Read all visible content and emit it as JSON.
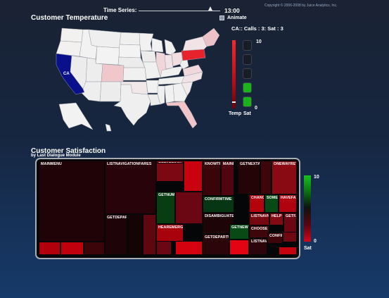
{
  "copyright": "Copyright © 2006-2008 by Juice Analytics, Inc.",
  "time_series": {
    "label": "Time Series:",
    "time": "13:00",
    "position": 0.88
  },
  "animate": {
    "label": "Animate",
    "checked": false
  },
  "temperature": {
    "title": "Customer Temperature",
    "readout": "CA:: Calls : 3: Sat : 3",
    "selected_state": "CA",
    "temp_label": "Temp",
    "sat_label": "Sat",
    "scale_max": "10",
    "scale_min": "0",
    "temp_level": 0.1,
    "sat_level": 3,
    "sat_slots": 5
  },
  "satisfaction": {
    "title": "Customer Satisfaction",
    "subtitle": "by Last Dialogue Module",
    "scale_max": "10",
    "scale_min": "0",
    "scale_label": "Sat"
  },
  "map_states": [
    {
      "name": "WA",
      "fill": "#f3f0f0"
    },
    {
      "name": "OR",
      "fill": "#f3f0f0"
    },
    {
      "name": "CA",
      "fill": "#0a0f8c"
    },
    {
      "name": "NV",
      "fill": "#ececec"
    },
    {
      "name": "ID",
      "fill": "#f2f2f2"
    },
    {
      "name": "MT",
      "fill": "#efefef"
    },
    {
      "name": "WY",
      "fill": "#f3f3f3"
    },
    {
      "name": "UT",
      "fill": "#ededed"
    },
    {
      "name": "AZ",
      "fill": "#eeeeee"
    },
    {
      "name": "CO",
      "fill": "#f0c8cc"
    },
    {
      "name": "NM",
      "fill": "#ececec"
    },
    {
      "name": "ND",
      "fill": "#efefef"
    },
    {
      "name": "SD",
      "fill": "#f3f3f3"
    },
    {
      "name": "NE",
      "fill": "#ececec"
    },
    {
      "name": "KS",
      "fill": "#f0f0f0"
    },
    {
      "name": "OK",
      "fill": "#f1e7e9"
    },
    {
      "name": "TX",
      "fill": "#efefef"
    },
    {
      "name": "MN",
      "fill": "#f1f1f1"
    },
    {
      "name": "IA",
      "fill": "#ececec"
    },
    {
      "name": "MO",
      "fill": "#f0f0f0"
    },
    {
      "name": "AR",
      "fill": "#f1f1f1"
    },
    {
      "name": "LA",
      "fill": "#ededed"
    },
    {
      "name": "WI",
      "fill": "#f2f2f2"
    },
    {
      "name": "IL",
      "fill": "#f0d6d9"
    },
    {
      "name": "MI",
      "fill": "#efefef"
    },
    {
      "name": "IN",
      "fill": "#f1e4e6"
    },
    {
      "name": "OH",
      "fill": "#f2dde0"
    },
    {
      "name": "KY",
      "fill": "#f0f0f0"
    },
    {
      "name": "TN",
      "fill": "#efefef"
    },
    {
      "name": "MS",
      "fill": "#f0f0f0"
    },
    {
      "name": "AL",
      "fill": "#f1f1f1"
    },
    {
      "name": "GA",
      "fill": "#f0f0f0"
    },
    {
      "name": "FL",
      "fill": "#f0c4c9"
    },
    {
      "name": "SC",
      "fill": "#f1e9ea"
    },
    {
      "name": "NC",
      "fill": "#f0e2e5"
    },
    {
      "name": "VA",
      "fill": "#f1d8dc"
    },
    {
      "name": "WV",
      "fill": "#efefef"
    },
    {
      "name": "PA",
      "fill": "#e8222d"
    },
    {
      "name": "NY",
      "fill": "#f2e4e6"
    },
    {
      "name": "NE-states",
      "fill": "#ecc2c8"
    },
    {
      "name": "AK",
      "fill": "#f2f2f2"
    },
    {
      "name": "HI",
      "fill": "#f0f0f0"
    }
  ],
  "treemap": [
    {
      "label": "MAINMENU",
      "fill": "#200306"
    },
    {
      "label": "",
      "fill": "#b1000c"
    },
    {
      "label": "",
      "fill": "#c1000e"
    },
    {
      "label": "",
      "fill": "#3c0509"
    },
    {
      "label": "LISTNAVIGATIONFARES",
      "fill": "#28040a"
    },
    {
      "label": "GETDEPARTURESTATION",
      "fill": "#1e0408"
    },
    {
      "label": "",
      "fill": "#140406"
    },
    {
      "label": "",
      "fill": "#5e0711"
    },
    {
      "label": "",
      "fill": "#6a0712"
    },
    {
      "label": "",
      "fill": "#7c0813"
    },
    {
      "label": "GETARRIVALSTATION",
      "fill": "#830912"
    },
    {
      "label": "",
      "fill": "#c8030f"
    },
    {
      "label": "GETNUMTYPEPASSENGERS",
      "fill": "#073d11"
    },
    {
      "label": "",
      "fill": "#6a0712"
    },
    {
      "label": "HEAREMERGENCYMESSAGE",
      "fill": "#a8030d"
    },
    {
      "label": "",
      "fill": "#d3020e"
    },
    {
      "label": "KNOWTRAINS",
      "fill": "#3a050a"
    },
    {
      "label": "MAINMENU",
      "fill": "#4f0610"
    },
    {
      "label": "CONFIRMTIME",
      "fill": "#073614"
    },
    {
      "label": "",
      "fill": "#1b0407"
    },
    {
      "label": "DISAMBIGUATE",
      "fill": "#1c0407"
    },
    {
      "label": "GETDEPARTUREDATE",
      "fill": "#2b0509"
    },
    {
      "label": "GETNEXTACTION",
      "fill": "#250408"
    },
    {
      "label": "",
      "fill": "#3d060b"
    },
    {
      "label": "GETNEWTIME",
      "fill": "#074a16"
    },
    {
      "label": "",
      "fill": "#e30413"
    },
    {
      "label": "CHANGEDATE",
      "fill": "#b5030d"
    },
    {
      "label": "SOMETHING",
      "fill": "#074a16"
    },
    {
      "label": "LISTNAVIGATION",
      "fill": "#75070f"
    },
    {
      "label": "HELP",
      "fill": "#820912"
    },
    {
      "label": "CHOOSE",
      "fill": "#3c060b"
    },
    {
      "label": "LISTNAVI",
      "fill": "#2b0509"
    },
    {
      "label": "CONFIRM",
      "fill": "#3e060b"
    },
    {
      "label": "",
      "fill": "#6f0810"
    },
    {
      "label": "ONEWAYRETURN",
      "fill": "#8a0a13"
    },
    {
      "label": "HAVEFARE",
      "fill": "#b1030f"
    },
    {
      "label": "GETFARE",
      "fill": "#6a0712"
    },
    {
      "label": "",
      "fill": "#c7030f"
    },
    {
      "label": "SAVE",
      "fill": "#55060f"
    },
    {
      "label": "",
      "fill": "#3b050a"
    }
  ]
}
